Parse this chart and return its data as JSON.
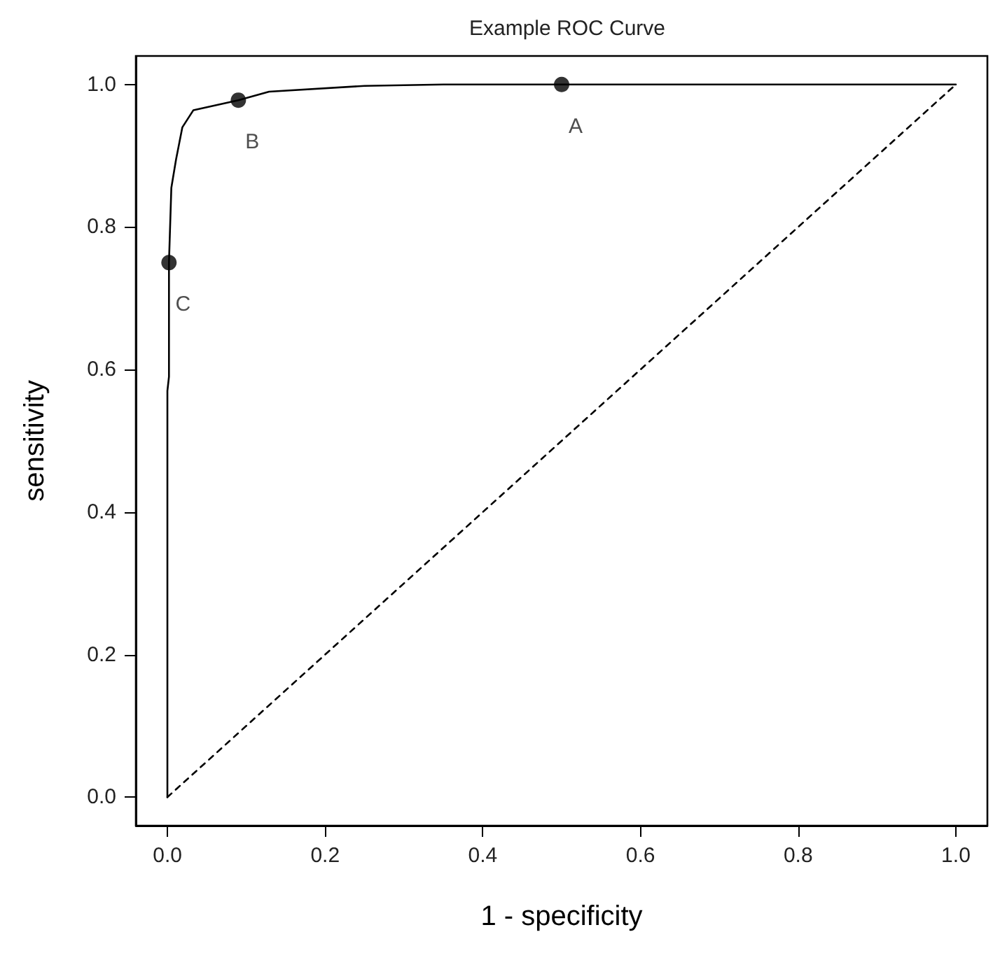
{
  "chart_data": {
    "type": "line",
    "title": "Example ROC Curve",
    "xlabel": "1 - specificity",
    "ylabel": "sensitivity",
    "xlim": [
      -0.04,
      1.04
    ],
    "ylim": [
      -0.04,
      1.04
    ],
    "xticks": [
      {
        "value": 0,
        "label": "0.0"
      },
      {
        "value": 0.2,
        "label": "0.2"
      },
      {
        "value": 0.4,
        "label": "0.4"
      },
      {
        "value": 0.6,
        "label": "0.6"
      },
      {
        "value": 0.8,
        "label": "0.8"
      },
      {
        "value": 1,
        "label": "1.0"
      }
    ],
    "yticks": [
      {
        "value": 0,
        "label": "0.0"
      },
      {
        "value": 0.2,
        "label": "0.2"
      },
      {
        "value": 0.4,
        "label": "0.4"
      },
      {
        "value": 0.6,
        "label": "0.6"
      },
      {
        "value": 0.8,
        "label": "0.8"
      },
      {
        "value": 1,
        "label": "1.0"
      }
    ],
    "grid": false,
    "series": [
      {
        "color": "#000000",
        "line_style": "solid",
        "marker": "none",
        "x": [
          0,
          0,
          0.002,
          0.002,
          0.005,
          0.011,
          0.019,
          0.033,
          0.09,
          0.129,
          0.25,
          0.35,
          0.5,
          1
        ],
        "values": [
          0,
          0.57,
          0.59,
          0.75,
          0.855,
          0.895,
          0.94,
          0.964,
          0.978,
          0.99,
          0.998,
          1,
          1,
          1
        ]
      },
      {
        "color": "#000000",
        "line_style": "dashed",
        "marker": "none",
        "x": [
          0,
          1
        ],
        "values": [
          0,
          1
        ]
      },
      {
        "type": "scatter",
        "color": "#000000",
        "marker": "circle",
        "x": [
          0.5,
          0.09,
          0.002
        ],
        "values": [
          1,
          0.978,
          0.75
        ],
        "value_labels": [
          "A",
          "B",
          "C"
        ]
      }
    ]
  }
}
